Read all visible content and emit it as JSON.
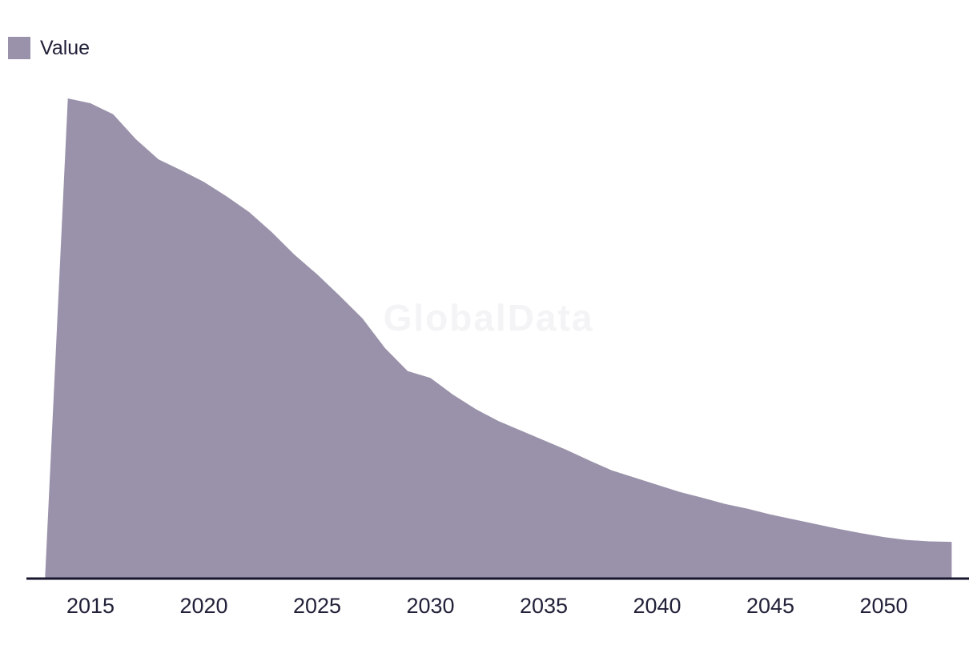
{
  "legend": {
    "label": "Value"
  },
  "watermark": "GlobalData",
  "colors": {
    "background": "#ffffff",
    "series_fill": "#9a92aa",
    "axis_line": "#16162e",
    "tick_text": "#212139",
    "legend_text": "#212139",
    "watermark_text": "#f4f3f5"
  },
  "chart_data": {
    "type": "area",
    "title": "",
    "xlabel": "",
    "ylabel": "",
    "legend_position": "top-left",
    "grid": false,
    "y_axis_visible": false,
    "ylim": [
      0,
      100
    ],
    "x_ticks": [
      2015,
      2020,
      2025,
      2030,
      2035,
      2040,
      2045,
      2050
    ],
    "series": [
      {
        "name": "Value",
        "x": [
          2013,
          2014,
          2015,
          2016,
          2017,
          2018,
          2019,
          2020,
          2021,
          2022,
          2023,
          2024,
          2025,
          2026,
          2027,
          2028,
          2029,
          2030,
          2031,
          2032,
          2033,
          2034,
          2035,
          2036,
          2037,
          2038,
          2039,
          2040,
          2041,
          2042,
          2043,
          2044,
          2045,
          2046,
          2047,
          2048,
          2049,
          2050,
          2051,
          2052,
          2053
        ],
        "values": [
          0.5,
          100,
          99.0,
          96.7,
          91.5,
          87.3,
          85.0,
          82.6,
          79.6,
          76.3,
          72.1,
          67.4,
          63.3,
          58.8,
          54.1,
          47.9,
          43.1,
          41.7,
          38.2,
          35.2,
          32.7,
          30.7,
          28.7,
          26.7,
          24.5,
          22.4,
          20.9,
          19.4,
          17.9,
          16.7,
          15.4,
          14.4,
          13.2,
          12.2,
          11.2,
          10.2,
          9.3,
          8.5,
          7.9,
          7.6,
          7.5
        ]
      }
    ]
  }
}
